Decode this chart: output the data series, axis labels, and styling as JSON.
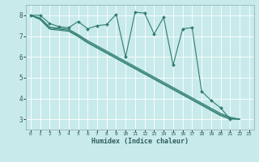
{
  "title": "",
  "xlabel": "Humidex (Indice chaleur)",
  "ylabel": "",
  "background_color": "#c8eaea",
  "plot_bg_color": "#c8eaea",
  "grid_color": "#ffffff",
  "line_color": "#2e7d6e",
  "spine_color": "#8aabab",
  "xlim": [
    -0.5,
    23.5
  ],
  "ylim": [
    2.5,
    8.5
  ],
  "xticks": [
    0,
    1,
    2,
    3,
    4,
    5,
    6,
    7,
    8,
    9,
    10,
    11,
    12,
    13,
    14,
    15,
    16,
    17,
    18,
    19,
    20,
    21,
    22,
    23
  ],
  "yticks": [
    3,
    4,
    5,
    6,
    7,
    8
  ],
  "series": [
    {
      "x": [
        0,
        1,
        2,
        3,
        4,
        5,
        6,
        7,
        8,
        9,
        10,
        11,
        12,
        13,
        14,
        15,
        16,
        17,
        18,
        19,
        20,
        21
      ],
      "y": [
        8.0,
        8.0,
        7.6,
        7.45,
        7.4,
        7.7,
        7.35,
        7.5,
        7.55,
        8.05,
        6.0,
        8.15,
        8.1,
        7.1,
        7.9,
        5.6,
        7.35,
        7.4,
        4.35,
        3.9,
        3.55,
        3.0
      ],
      "marker": "D",
      "markersize": 2.0,
      "linewidth": 0.8
    },
    {
      "x": [
        0,
        1,
        2,
        3,
        4,
        5,
        6,
        7,
        8,
        9,
        10,
        11,
        12,
        13,
        14,
        15,
        16,
        17,
        18,
        19,
        20,
        21,
        22
      ],
      "y": [
        8.0,
        7.87,
        7.43,
        7.38,
        7.33,
        7.07,
        6.78,
        6.53,
        6.28,
        6.03,
        5.78,
        5.53,
        5.28,
        5.03,
        4.78,
        4.53,
        4.28,
        4.03,
        3.78,
        3.53,
        3.28,
        3.1,
        3.0
      ],
      "marker": null,
      "markersize": 0,
      "linewidth": 0.8
    },
    {
      "x": [
        0,
        1,
        2,
        3,
        4,
        5,
        6,
        7,
        8,
        9,
        10,
        11,
        12,
        13,
        14,
        15,
        16,
        17,
        18,
        19,
        20,
        21,
        22
      ],
      "y": [
        8.0,
        7.83,
        7.38,
        7.33,
        7.28,
        7.02,
        6.72,
        6.47,
        6.22,
        5.97,
        5.72,
        5.47,
        5.22,
        4.97,
        4.72,
        4.47,
        4.22,
        3.97,
        3.72,
        3.47,
        3.22,
        3.05,
        3.0
      ],
      "marker": null,
      "markersize": 0,
      "linewidth": 0.8
    },
    {
      "x": [
        0,
        1,
        2,
        3,
        4,
        5,
        6,
        7,
        8,
        9,
        10,
        11,
        12,
        13,
        14,
        15,
        16,
        17,
        18,
        19,
        20,
        21,
        22
      ],
      "y": [
        8.0,
        7.79,
        7.33,
        7.28,
        7.23,
        6.97,
        6.67,
        6.42,
        6.17,
        5.92,
        5.67,
        5.42,
        5.17,
        4.92,
        4.67,
        4.42,
        4.17,
        3.92,
        3.67,
        3.42,
        3.17,
        3.0,
        3.0
      ],
      "marker": null,
      "markersize": 0,
      "linewidth": 0.8
    }
  ]
}
